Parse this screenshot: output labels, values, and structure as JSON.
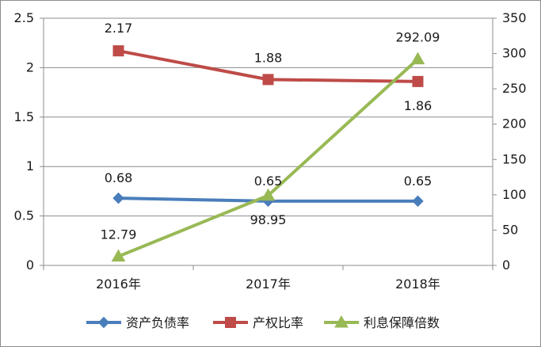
{
  "chart_data": {
    "type": "line",
    "categories": [
      "2016年",
      "2017年",
      "2018年"
    ],
    "y_left": {
      "range": [
        0,
        2.5
      ],
      "ticks": [
        "0",
        "0.5",
        "1",
        "1.5",
        "2",
        "2.5"
      ]
    },
    "y_right": {
      "range": [
        0,
        350
      ],
      "ticks": [
        "0",
        "50",
        "100",
        "150",
        "200",
        "250",
        "300",
        "350"
      ]
    },
    "grid": true,
    "legend_position": "bottom",
    "series": [
      {
        "name": "资产负债率",
        "axis": "left",
        "color": "#4a7ebb",
        "marker": "diamond",
        "values": [
          0.68,
          0.65,
          0.65
        ],
        "labels": [
          "0.68",
          "0.65",
          "0.65"
        ]
      },
      {
        "name": "产权比率",
        "axis": "left",
        "color": "#be4b48",
        "marker": "square",
        "values": [
          2.17,
          1.88,
          1.86
        ],
        "labels": [
          "2.17",
          "1.88",
          "1.86"
        ]
      },
      {
        "name": "利息保障倍数",
        "axis": "right",
        "color": "#98b954",
        "marker": "triangle",
        "values": [
          12.79,
          98.95,
          292.09
        ],
        "labels": [
          "12.79",
          "98.95",
          "292.09"
        ]
      }
    ]
  }
}
